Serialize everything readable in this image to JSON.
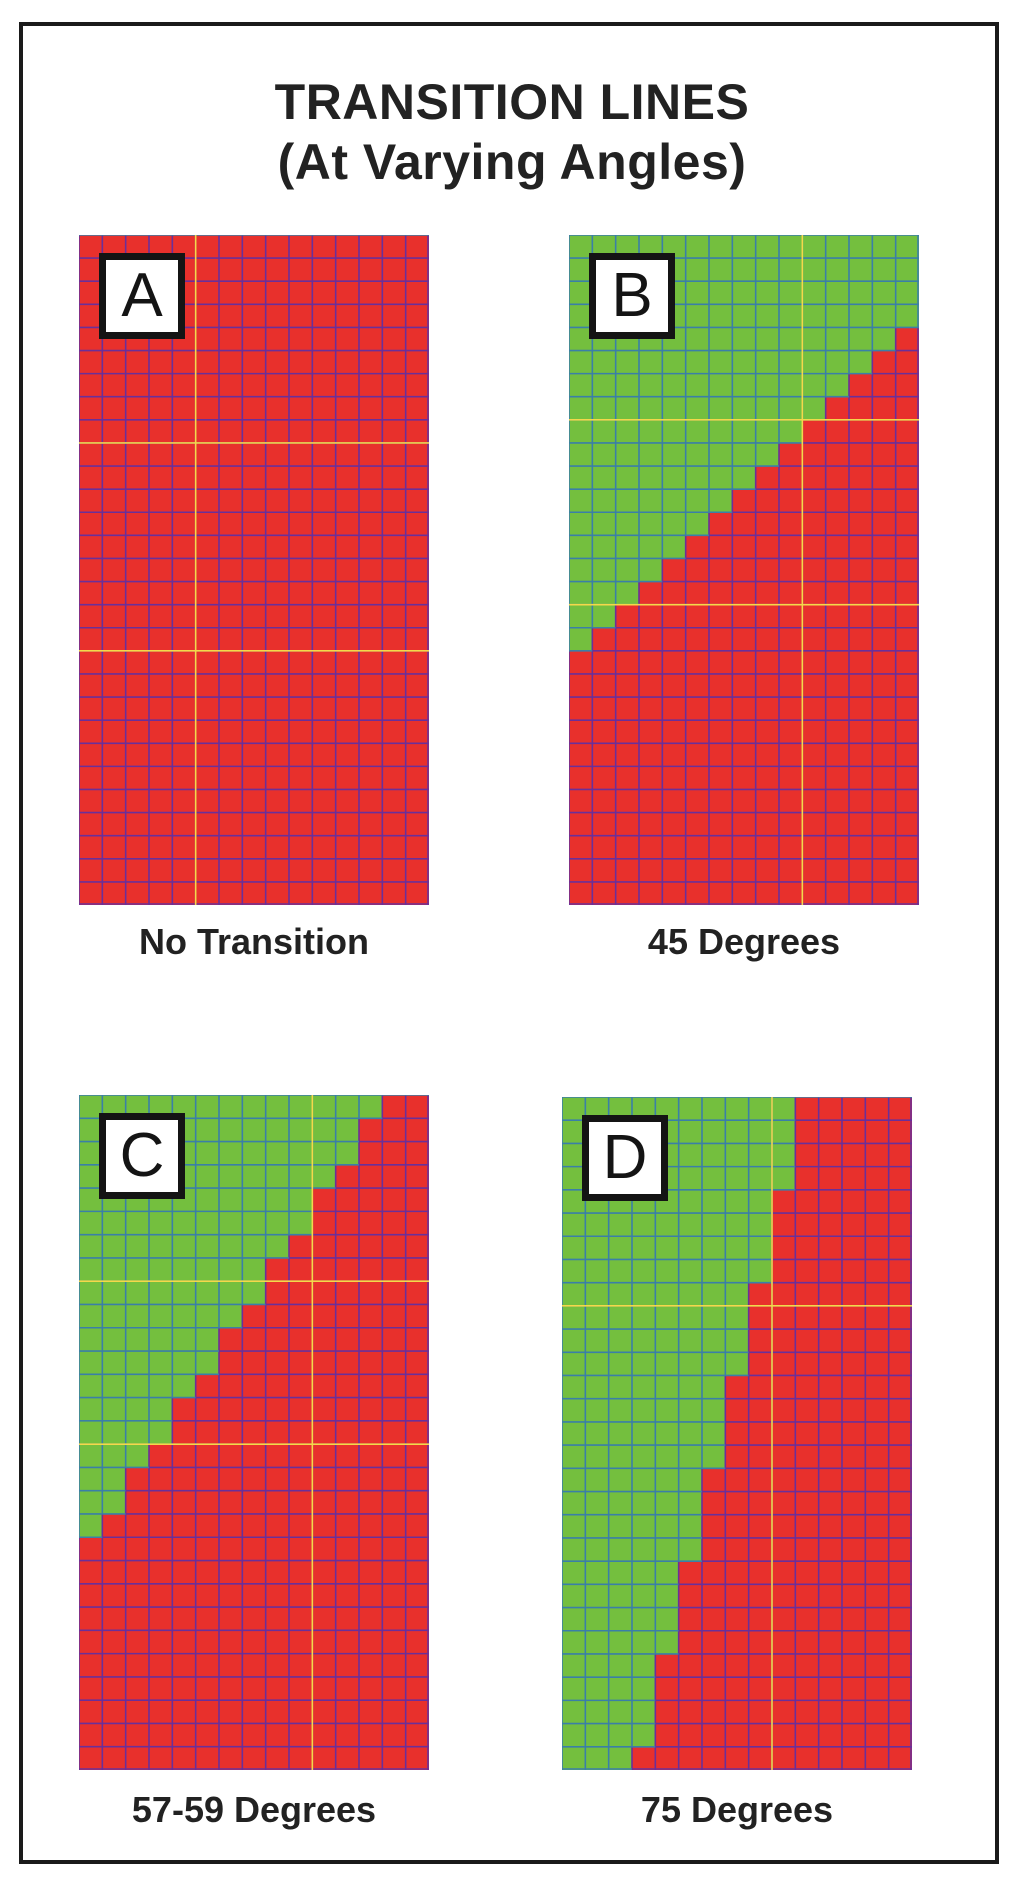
{
  "title": {
    "line1": "TRANSITION LINES",
    "line2": "(At Varying Angles)"
  },
  "colors": {
    "red": "#e8302c",
    "green": "#74bf3e",
    "red_grid": "#6a2f9a",
    "green_grid": "#3a7fa8",
    "highlight": "#f4d84a",
    "frame": "#1a1a1a"
  },
  "panels": [
    {
      "letter": "A",
      "caption": "No Transition",
      "transition": "none"
    },
    {
      "letter": "B",
      "caption": "45 Degrees",
      "transition": "45"
    },
    {
      "letter": "C",
      "caption": "57-59 Degrees",
      "transition": "57-59"
    },
    {
      "letter": "D",
      "caption": "75 Degrees",
      "transition": "75"
    }
  ]
}
